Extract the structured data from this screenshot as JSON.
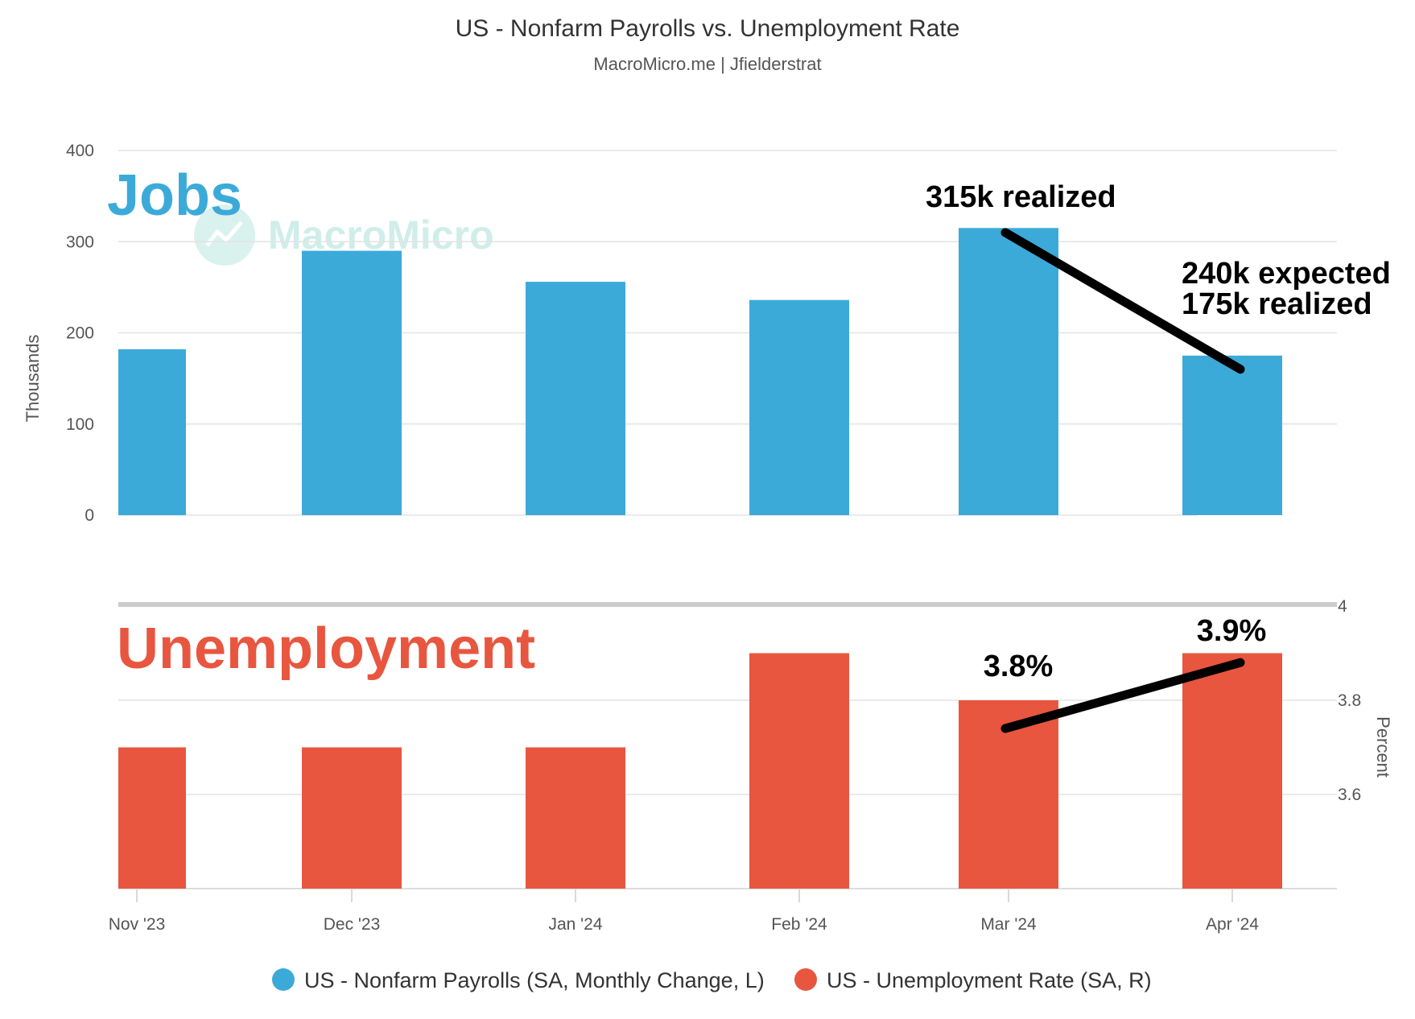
{
  "chart_data": {
    "type": "bar",
    "title": "US - Nonfarm Payrolls vs. Unemployment Rate",
    "subtitle": "MacroMicro.me | Jfielderstrat",
    "watermark": "MacroMicro",
    "categories": [
      "Nov '23",
      "Dec '23",
      "Jan '24",
      "Feb '24",
      "Mar '24",
      "Apr '24"
    ],
    "panels": [
      {
        "id": "jobs",
        "label": "Jobs",
        "ylabel": "Thousands",
        "axis_side": "left",
        "ylim": [
          0,
          400
        ],
        "yticks": [
          0,
          100,
          200,
          300,
          400
        ],
        "series": {
          "name": "US - Nonfarm Payrolls (SA, Monthly Change, L)",
          "color": "#3caad9",
          "values": [
            182,
            290,
            256,
            236,
            315,
            175
          ]
        },
        "annotations": [
          {
            "lines": [
              "315k realized"
            ]
          },
          {
            "lines": [
              "240k expected",
              "175k realized"
            ]
          }
        ],
        "trend_line": {
          "from": {
            "category": "Mar '24",
            "value": 310
          },
          "to": {
            "category": "Apr '24",
            "value": 160
          }
        }
      },
      {
        "id": "unemployment",
        "label": "Unemployment",
        "ylabel": "Percent",
        "axis_side": "right",
        "ylim": [
          3.4,
          4.0
        ],
        "yticks": [
          "3.6",
          "3.8",
          "4"
        ],
        "series": {
          "name": "US - Unemployment Rate (SA, R)",
          "color": "#e8563f",
          "values": [
            3.7,
            3.7,
            3.7,
            3.9,
            3.8,
            3.9
          ]
        },
        "annotations": [
          {
            "lines": [
              "3.8%"
            ]
          },
          {
            "lines": [
              "3.9%"
            ]
          }
        ],
        "trend_line": {
          "from": {
            "category": "Mar '24",
            "value": 3.74
          },
          "to": {
            "category": "Apr '24",
            "value": 3.88
          }
        }
      }
    ],
    "legend": {
      "position": "bottom",
      "items": [
        {
          "name": "US - Nonfarm Payrolls (SA, Monthly Change, L)",
          "color": "#3caad9"
        },
        {
          "name": "US - Unemployment Rate (SA, R)",
          "color": "#e8563f"
        }
      ]
    },
    "grid": true
  }
}
